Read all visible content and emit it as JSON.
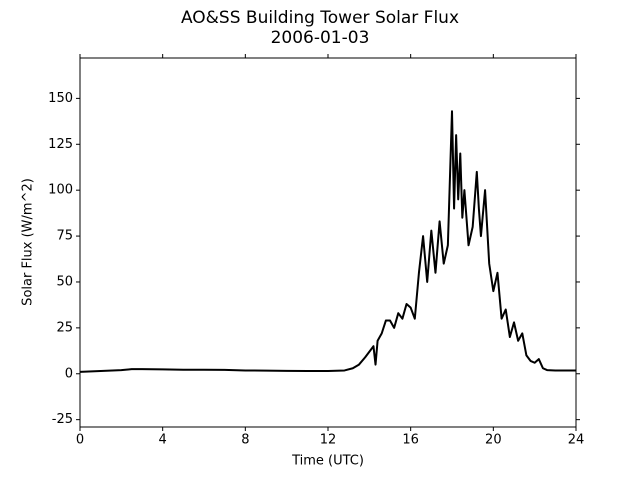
{
  "chart_data": {
    "type": "line",
    "title": "AO&SS Building Tower Solar Flux",
    "subtitle": "2006-01-03",
    "x_label": "Time (UTC)",
    "y_label": "Solar Flux (W/m^2)",
    "xlim": [
      0,
      24
    ],
    "xticks": [
      0,
      4,
      8,
      12,
      16,
      20,
      24
    ],
    "ylim": [
      -29,
      172
    ],
    "yticks": [
      -25,
      0,
      25,
      50,
      75,
      100,
      125,
      150
    ],
    "x": [
      0,
      1,
      2,
      2.5,
      3,
      4,
      5,
      6,
      7,
      8,
      9,
      10,
      11,
      12,
      12.8,
      13.2,
      13.5,
      13.8,
      14,
      14.2,
      14.3,
      14.4,
      14.6,
      14.8,
      15,
      15.2,
      15.4,
      15.6,
      15.8,
      16,
      16.2,
      16.4,
      16.6,
      16.8,
      17,
      17.2,
      17.4,
      17.6,
      17.8,
      18,
      18.1,
      18.2,
      18.3,
      18.4,
      18.5,
      18.6,
      18.8,
      19,
      19.2,
      19.3,
      19.4,
      19.6,
      19.8,
      20,
      20.2,
      20.4,
      20.6,
      20.8,
      21,
      21.2,
      21.4,
      21.6,
      21.8,
      22,
      22.2,
      22.4,
      22.6,
      23,
      24
    ],
    "series": [
      {
        "name": "Solar Flux",
        "color": "#000000",
        "values": [
          1,
          1.5,
          2,
          2.5,
          2.5,
          2.4,
          2.2,
          2.2,
          2.1,
          1.8,
          1.7,
          1.6,
          1.5,
          1.5,
          1.8,
          3,
          5,
          9,
          12,
          15,
          5,
          18,
          22,
          29,
          29,
          25,
          33,
          30,
          38,
          36,
          30,
          55,
          75,
          50,
          78,
          55,
          83,
          60,
          70,
          143,
          90,
          130,
          95,
          120,
          85,
          100,
          70,
          80,
          110,
          90,
          75,
          100,
          60,
          45,
          55,
          30,
          35,
          20,
          28,
          18,
          22,
          10,
          7,
          6,
          8,
          3,
          2,
          1.8,
          1.8
        ]
      }
    ]
  }
}
